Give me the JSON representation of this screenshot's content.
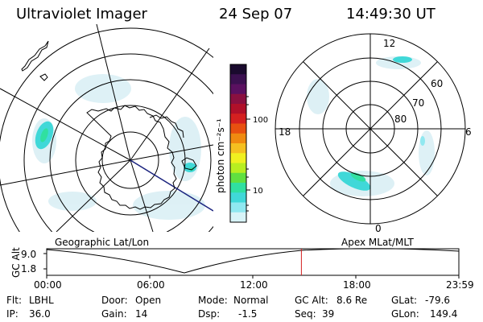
{
  "header": {
    "instrument": "Ultraviolet Imager",
    "date": "24 Sep 07",
    "time": "14:49:30 UT"
  },
  "colorbar": {
    "unit_label": "photon cm⁻²s⁻¹",
    "ticks": [
      "100",
      "10"
    ],
    "colors": [
      "#1a0a2e",
      "#3b1050",
      "#5a1060",
      "#8a1040",
      "#b0102a",
      "#d42020",
      "#e85010",
      "#f08a10",
      "#f5c020",
      "#f0f020",
      "#b8ee20",
      "#60e040",
      "#30e0a0",
      "#40d8d8",
      "#90e8f0",
      "#d8f4f8"
    ]
  },
  "left_map": {
    "label": "Geographic Lat/Lon"
  },
  "right_map": {
    "label": "Apex MLat/MLT",
    "mlt_labels": [
      "12",
      "18",
      "6",
      "0"
    ],
    "lat_labels": [
      "60",
      "70",
      "80"
    ]
  },
  "timeline": {
    "axis_label": "GC Alt",
    "y_ticks": [
      "9.0",
      "1.8"
    ],
    "x_ticks": [
      "00:00",
      "06:00",
      "12:00",
      "18:00",
      "23:59"
    ],
    "current_time_fraction": 0.618
  },
  "info": {
    "filter_label": "Flt:",
    "filter_value": "LBHL",
    "ip_label": "IP:",
    "ip_value": "36.0",
    "door_label": "Door:",
    "door_value": "Open",
    "gain_label": "Gain:",
    "gain_value": "14",
    "mode_label": "Mode:",
    "mode_value": "Normal",
    "dsp_label": "Dsp:",
    "dsp_value": "-1.5",
    "gcalt_label": "GC Alt:",
    "gcalt_value": "8.6 Re",
    "seq_label": "Seq:",
    "seq_value": "39",
    "glat_label": "GLat:",
    "glat_value": "-79.6",
    "glon_label": "GLon:",
    "glon_value": "149.4"
  }
}
